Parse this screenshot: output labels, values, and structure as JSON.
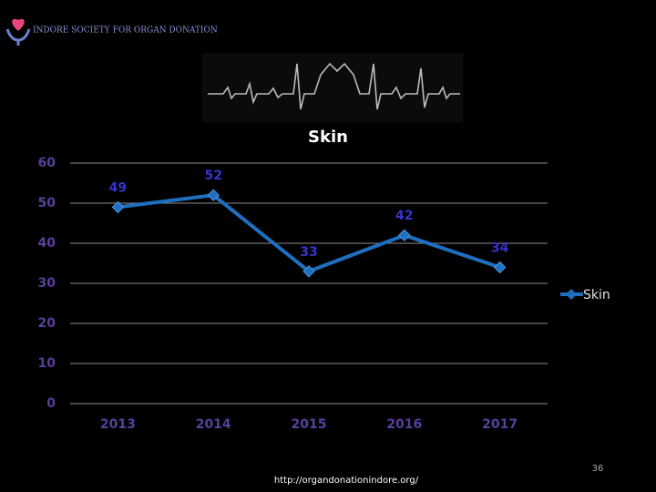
{
  "header": {
    "org_name": "INDORE SOCIETY FOR ORGAN DONATION"
  },
  "footer": {
    "url": "http://organdonationindore.org/",
    "page_number": "36"
  },
  "chart_data": {
    "type": "line",
    "title": "Skin",
    "categories": [
      "2013",
      "2014",
      "2015",
      "2016",
      "2017"
    ],
    "series": [
      {
        "name": "Skin",
        "color": "#1f6fc0",
        "values": [
          49,
          52,
          33,
          42,
          34
        ]
      }
    ],
    "ylim": [
      0,
      60
    ],
    "yticks": [
      0,
      10,
      20,
      30,
      40,
      50,
      60
    ],
    "grid": true,
    "legend": "right"
  }
}
